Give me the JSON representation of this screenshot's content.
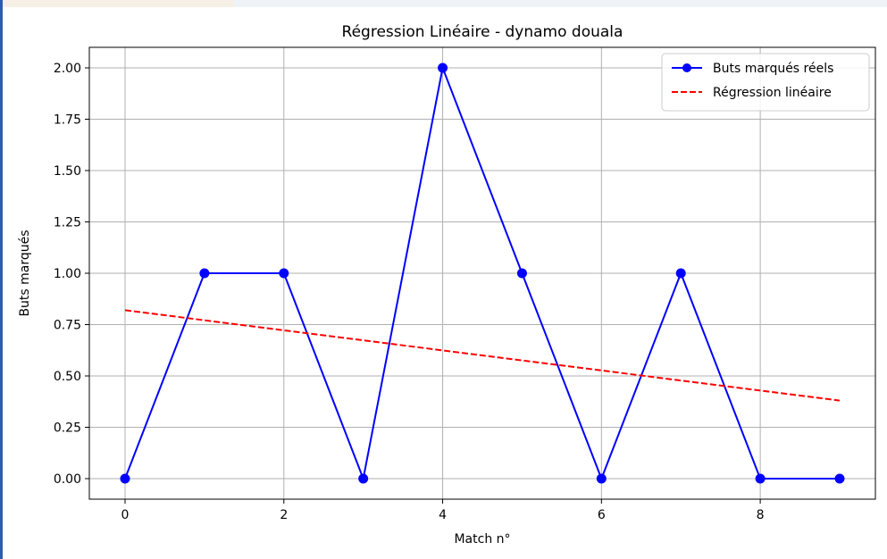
{
  "chart_data": {
    "type": "line",
    "title": "Régression Linéaire - dynamo douala",
    "xlabel": "Match n°",
    "ylabel": "Buts marqués",
    "xlim": [
      -0.45,
      9.45
    ],
    "ylim": [
      -0.1,
      2.1
    ],
    "x_ticks": [
      0,
      2,
      4,
      6,
      8
    ],
    "x_tick_labels": [
      "0",
      "2",
      "4",
      "6",
      "8"
    ],
    "y_ticks": [
      0,
      0.25,
      0.5,
      0.75,
      1.0,
      1.25,
      1.5,
      1.75,
      2.0
    ],
    "y_tick_labels": [
      "0.00",
      "0.25",
      "0.50",
      "0.75",
      "1.00",
      "1.25",
      "1.50",
      "1.75",
      "2.00"
    ],
    "grid": true,
    "legend_position": "top-right",
    "series": [
      {
        "name": "Buts marqués réels",
        "style": "solid-markers",
        "color": "#0000ff",
        "x": [
          0,
          1,
          2,
          3,
          4,
          5,
          6,
          7,
          8,
          9
        ],
        "y": [
          0,
          1,
          1,
          0,
          2,
          1,
          0,
          1,
          0,
          0
        ]
      },
      {
        "name": "Régression linéaire",
        "style": "dashed",
        "color": "#ff0000",
        "x": [
          0,
          9
        ],
        "y": [
          0.82,
          0.38
        ]
      }
    ]
  }
}
